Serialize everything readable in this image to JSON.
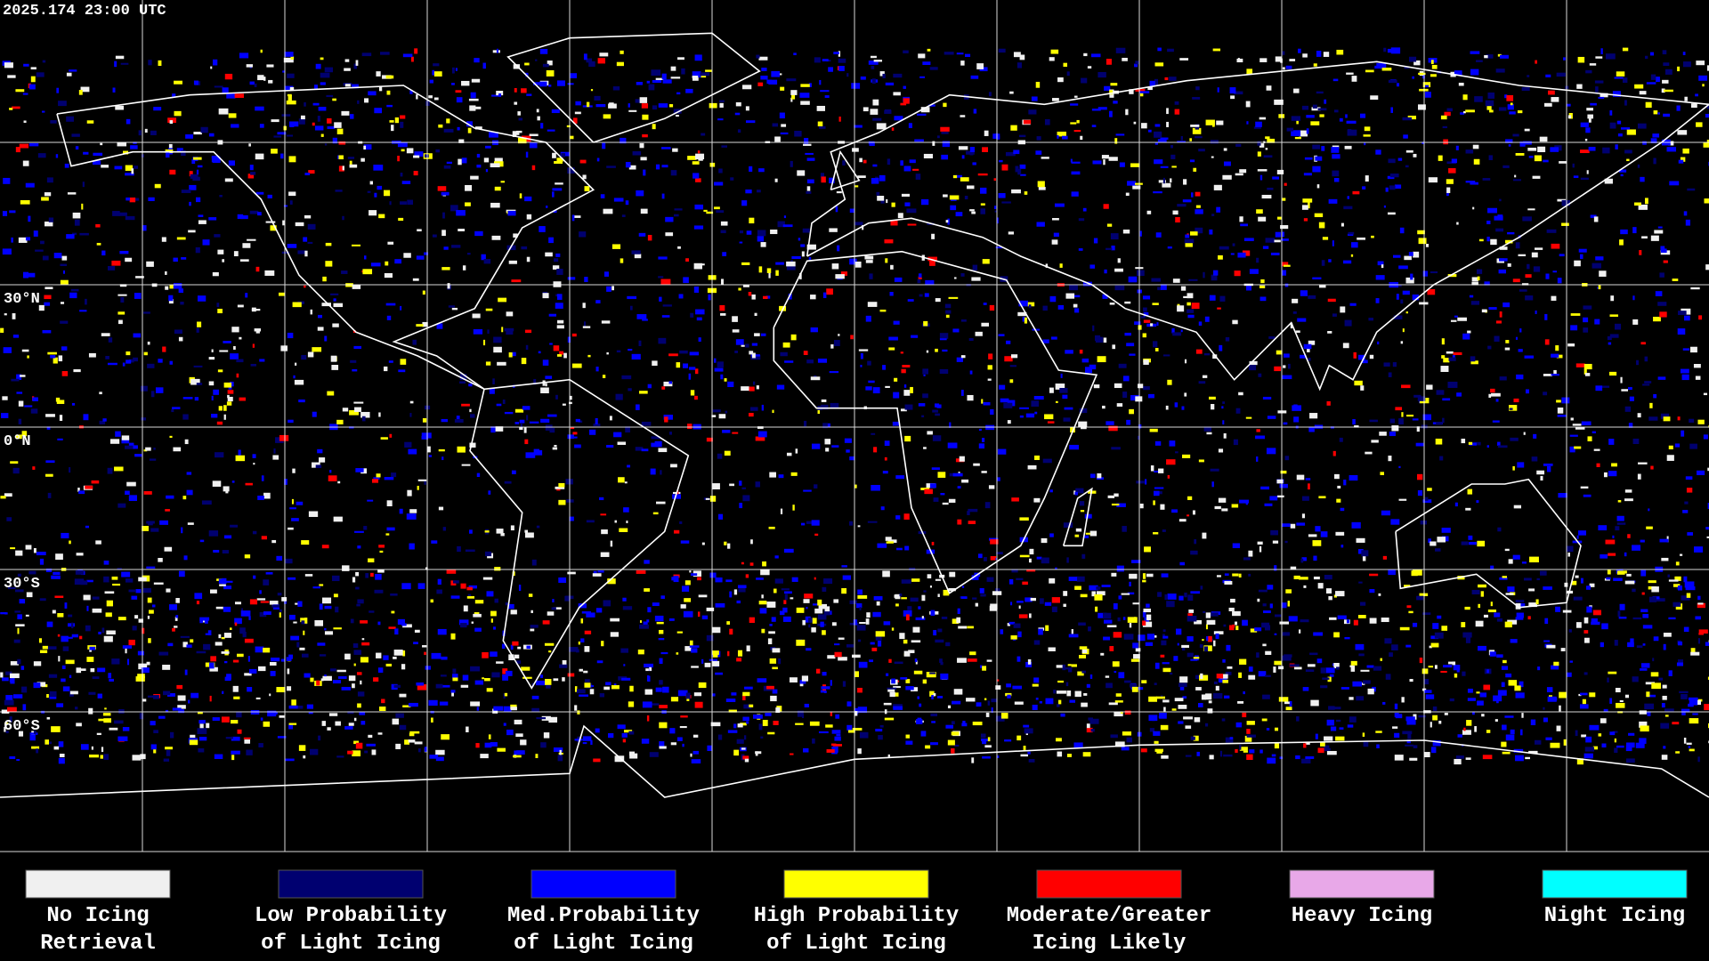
{
  "header": {
    "timestamp": "2025.174 23:00 UTC"
  },
  "map": {
    "latitude_labels": [
      "30°N",
      "0°N",
      "30°S",
      "60°S"
    ]
  },
  "legend": {
    "items": [
      {
        "label": [
          "No Icing",
          "Retrieval"
        ],
        "color": "#f0f0f0"
      },
      {
        "label": [
          "Low Probability",
          "of Light Icing"
        ],
        "color": "#000070"
      },
      {
        "label": [
          "Med.Probability",
          "of Light Icing"
        ],
        "color": "#0000ff"
      },
      {
        "label": [
          "High Probability",
          "of Light Icing"
        ],
        "color": "#ffff00"
      },
      {
        "label": [
          "Moderate/Greater",
          "Icing Likely"
        ],
        "color": "#ff0000"
      },
      {
        "label": [
          "Heavy Icing"
        ],
        "color": "#e8a8e8"
      },
      {
        "label": [
          "Night Icing"
        ],
        "color": "#00ffff"
      }
    ]
  }
}
